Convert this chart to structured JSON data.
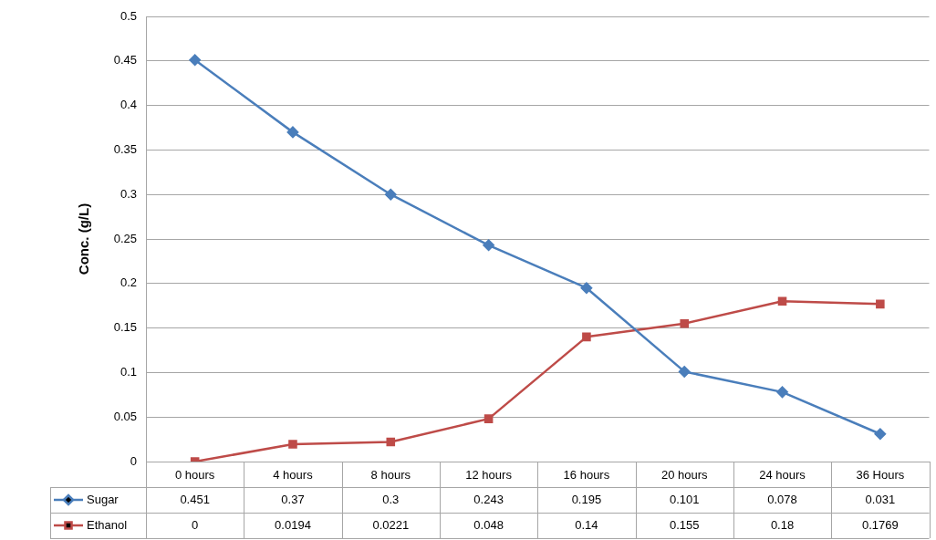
{
  "chart_data": {
    "type": "line",
    "ylabel": "Conc. (g/L)",
    "categories": [
      "0 hours",
      "4 hours",
      "8 hours",
      "12 hours",
      "16 hours",
      "20 hours",
      "24 hours",
      "36 Hours"
    ],
    "series": [
      {
        "name": "Sugar",
        "color": "#4a7ebb",
        "marker": "diamond",
        "values": [
          0.451,
          0.37,
          0.3,
          0.243,
          0.195,
          0.101,
          0.078,
          0.031
        ]
      },
      {
        "name": "Ethanol",
        "color": "#be4b48",
        "marker": "square",
        "values": [
          0,
          0.0194,
          0.0221,
          0.048,
          0.14,
          0.155,
          0.18,
          0.1769
        ]
      }
    ],
    "ylim": [
      0,
      0.5
    ],
    "yticks": [
      0,
      0.05,
      0.1,
      0.15,
      0.2,
      0.25,
      0.3,
      0.35,
      0.4,
      0.45,
      0.5
    ],
    "grid": "y",
    "legend": "bottom left",
    "data_labels": true
  }
}
